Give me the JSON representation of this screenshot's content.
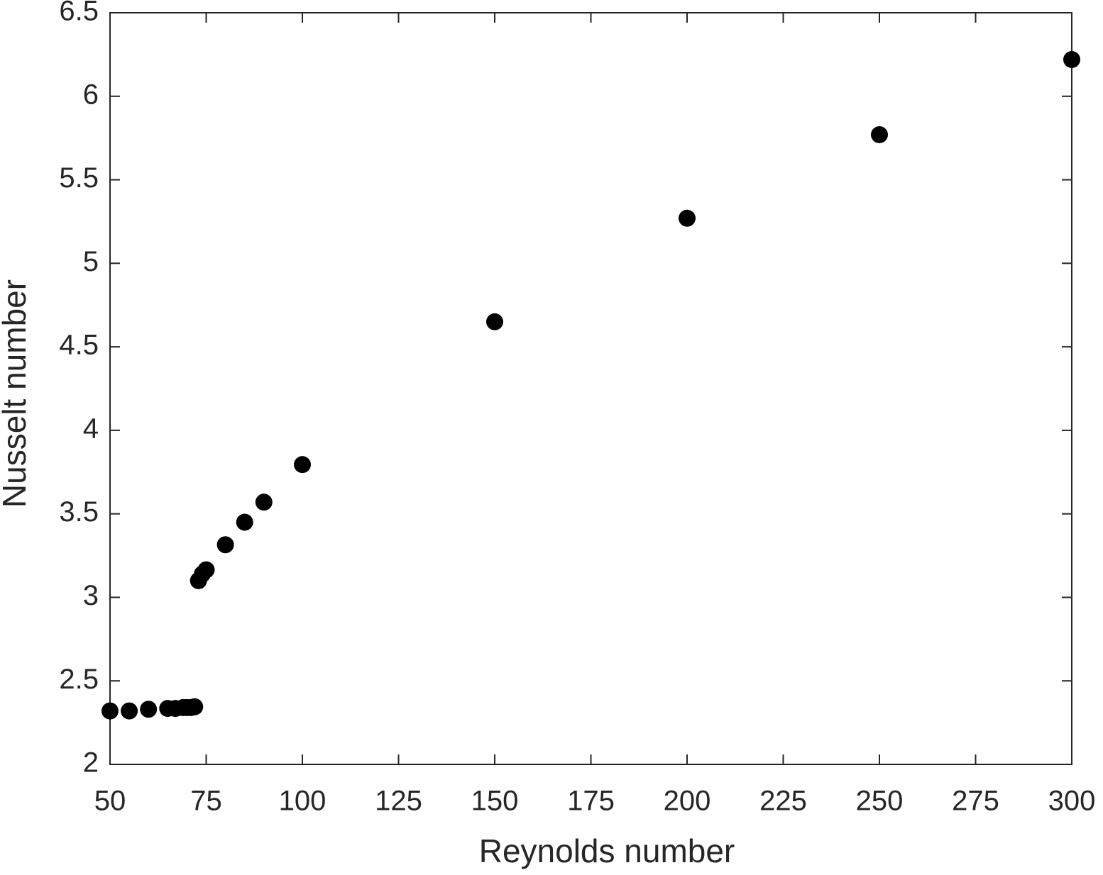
{
  "chart_data": {
    "type": "scatter",
    "x_label": "Reynolds number",
    "y_label": "Nusselt number",
    "x": [
      50,
      55,
      60,
      65,
      67,
      69,
      70,
      71,
      72,
      73,
      74,
      75,
      80,
      85,
      90,
      100,
      150,
      200,
      250,
      300
    ],
    "values": [
      2.32,
      2.32,
      2.33,
      2.335,
      2.335,
      2.34,
      2.34,
      2.34,
      2.345,
      3.1,
      3.14,
      3.165,
      3.315,
      3.45,
      3.57,
      3.795,
      4.65,
      5.27,
      5.77,
      6.22
    ],
    "color": "#000000",
    "xlim": [
      50,
      300
    ],
    "xticks": [
      50,
      75,
      100,
      125,
      150,
      175,
      200,
      225,
      250,
      275,
      300
    ],
    "ylim": [
      2,
      6.5
    ],
    "yticks": [
      2,
      2.5,
      3,
      3.5,
      4,
      4.5,
      5,
      5.5,
      6,
      6.5
    ],
    "grid": false
  }
}
